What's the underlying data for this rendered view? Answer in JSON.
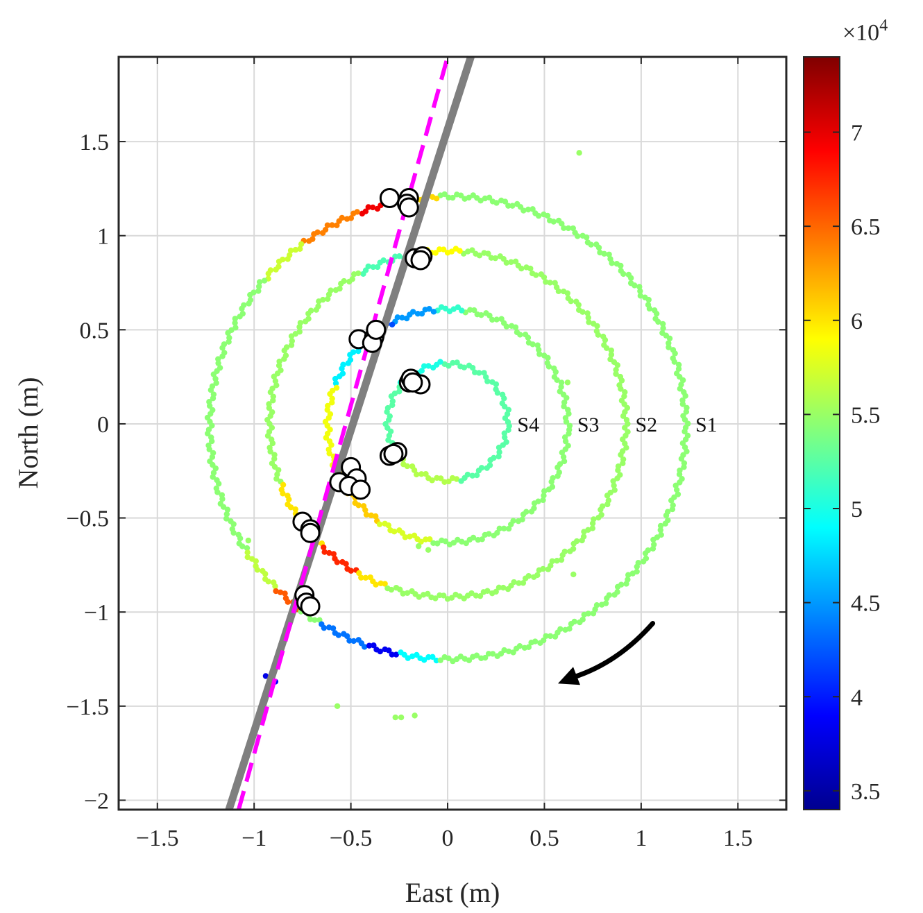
{
  "chart_data": {
    "type": "scatter",
    "xlabel": "East (m)",
    "ylabel": "North (m)",
    "xlim": [
      -1.7,
      1.75
    ],
    "ylim": [
      -2.05,
      1.95
    ],
    "x_ticks": [
      -1.5,
      -1,
      -0.5,
      0,
      0.5,
      1,
      1.5
    ],
    "x_tick_labels": [
      "−1.5",
      "−1",
      "−0.5",
      "0",
      "0.5",
      "1",
      "1.5"
    ],
    "y_ticks": [
      -2,
      -1.5,
      -1,
      -0.5,
      0,
      0.5,
      1,
      1.5
    ],
    "y_tick_labels": [
      "−2",
      "−1.5",
      "−1",
      "−0.5",
      "0",
      "0.5",
      "1",
      "1.5"
    ],
    "grid": true,
    "colorbar": {
      "colormap": "jet",
      "range": [
        34000,
        74000
      ],
      "ticks": [
        35000,
        40000,
        45000,
        50000,
        55000,
        60000,
        65000,
        70000
      ],
      "tick_labels": [
        "3.5",
        "4",
        "4.5",
        "5",
        "5.5",
        "6",
        "6.5",
        "7"
      ],
      "multiplier_base": "×10",
      "multiplier_exponent": "4"
    },
    "rings": [
      {
        "label": "S1",
        "radius": 1.23,
        "cx": 0.0,
        "cy": -0.02,
        "base_value": 54500,
        "segments": [
          {
            "from": 92,
            "to": 100,
            "value": 60500
          },
          {
            "from": 100,
            "to": 112,
            "value": 69500
          },
          {
            "from": 112,
            "to": 127,
            "value": 64000
          },
          {
            "from": 127,
            "to": 140,
            "value": 57000
          },
          {
            "from": 212,
            "to": 224,
            "value": 56500
          },
          {
            "from": 224,
            "to": 232,
            "value": 65500
          },
          {
            "from": 238,
            "to": 250,
            "value": 43500
          },
          {
            "from": 250,
            "to": 258,
            "value": 38500
          },
          {
            "from": 258,
            "to": 268,
            "value": 49000
          }
        ]
      },
      {
        "label": "S2",
        "radius": 0.92,
        "cx": 0.0,
        "cy": 0.0,
        "base_value": 55000,
        "segments": [
          {
            "from": 85,
            "to": 100,
            "value": 59000
          },
          {
            "from": 100,
            "to": 120,
            "value": 52000
          },
          {
            "from": 200,
            "to": 225,
            "value": 60000
          },
          {
            "from": 225,
            "to": 240,
            "value": 67500
          },
          {
            "from": 240,
            "to": 250,
            "value": 60000
          }
        ]
      },
      {
        "label": "S3",
        "radius": 0.62,
        "cx": 0.0,
        "cy": -0.01,
        "base_value": 54500,
        "segments": [
          {
            "from": 82,
            "to": 95,
            "value": 51000
          },
          {
            "from": 95,
            "to": 118,
            "value": 45000
          },
          {
            "from": 118,
            "to": 138,
            "value": 42000
          },
          {
            "from": 138,
            "to": 160,
            "value": 48500
          },
          {
            "from": 160,
            "to": 200,
            "value": 58500
          },
          {
            "from": 200,
            "to": 235,
            "value": 61000
          },
          {
            "from": 235,
            "to": 262,
            "value": 57500
          }
        ]
      },
      {
        "label": "S4",
        "radius": 0.31,
        "cx": 0.0,
        "cy": 0.01,
        "base_value": 52500,
        "segments": [
          {
            "from": 95,
            "to": 140,
            "value": 50000
          },
          {
            "from": 210,
            "to": 280,
            "value": 56000
          }
        ]
      }
    ],
    "white_markers": [
      {
        "x": -0.3,
        "y": 1.2
      },
      {
        "x": -0.2,
        "y": 1.2
      },
      {
        "x": -0.21,
        "y": 1.17
      },
      {
        "x": -0.2,
        "y": 1.15
      },
      {
        "x": -0.17,
        "y": 0.88
      },
      {
        "x": -0.13,
        "y": 0.89
      },
      {
        "x": -0.14,
        "y": 0.87
      },
      {
        "x": -0.46,
        "y": 0.45
      },
      {
        "x": -0.38,
        "y": 0.46
      },
      {
        "x": -0.39,
        "y": 0.43
      },
      {
        "x": -0.37,
        "y": 0.5
      },
      {
        "x": -0.2,
        "y": 0.22
      },
      {
        "x": -0.14,
        "y": 0.21
      },
      {
        "x": -0.19,
        "y": 0.24
      },
      {
        "x": -0.18,
        "y": 0.22
      },
      {
        "x": -0.3,
        "y": -0.17
      },
      {
        "x": -0.26,
        "y": -0.15
      },
      {
        "x": -0.28,
        "y": -0.16
      },
      {
        "x": -0.5,
        "y": -0.23
      },
      {
        "x": -0.56,
        "y": -0.31
      },
      {
        "x": -0.47,
        "y": -0.29
      },
      {
        "x": -0.51,
        "y": -0.33
      },
      {
        "x": -0.45,
        "y": -0.35
      },
      {
        "x": -0.75,
        "y": -0.52
      },
      {
        "x": -0.71,
        "y": -0.56
      },
      {
        "x": -0.71,
        "y": -0.58
      },
      {
        "x": -0.74,
        "y": -0.91
      },
      {
        "x": -0.73,
        "y": -0.95
      },
      {
        "x": -0.71,
        "y": -0.97
      }
    ],
    "solid_line": {
      "color": "#7f7f7f",
      "x": [
        -1.13,
        0.12
      ],
      "y": [
        -2.05,
        1.95
      ]
    },
    "dashed_line": {
      "color": "#ff00ff",
      "x": [
        -1.08,
        0.0
      ],
      "y": [
        -2.05,
        1.95
      ]
    },
    "arrow": {
      "from": [
        1.06,
        -1.06
      ],
      "to": [
        0.57,
        -1.38
      ]
    },
    "stray_points": [
      {
        "x": 0.68,
        "y": 1.44,
        "value": 55000
      },
      {
        "x": -0.57,
        "y": -1.5,
        "value": 55000
      },
      {
        "x": -0.27,
        "y": -1.56,
        "value": 55000
      },
      {
        "x": -0.24,
        "y": -1.56,
        "value": 55000
      },
      {
        "x": -0.17,
        "y": -1.55,
        "value": 55000
      },
      {
        "x": -0.94,
        "y": -1.34,
        "value": 38000
      },
      {
        "x": -0.89,
        "y": -1.37,
        "value": 39000
      },
      {
        "x": 0.65,
        "y": -0.8,
        "value": 55000
      },
      {
        "x": 0.62,
        "y": 0.22,
        "value": 55000
      },
      {
        "x": -1.03,
        "y": -0.62,
        "value": 55000
      },
      {
        "x": -0.15,
        "y": -0.65,
        "value": 55000
      },
      {
        "x": -0.1,
        "y": -0.67,
        "value": 55000
      }
    ]
  }
}
